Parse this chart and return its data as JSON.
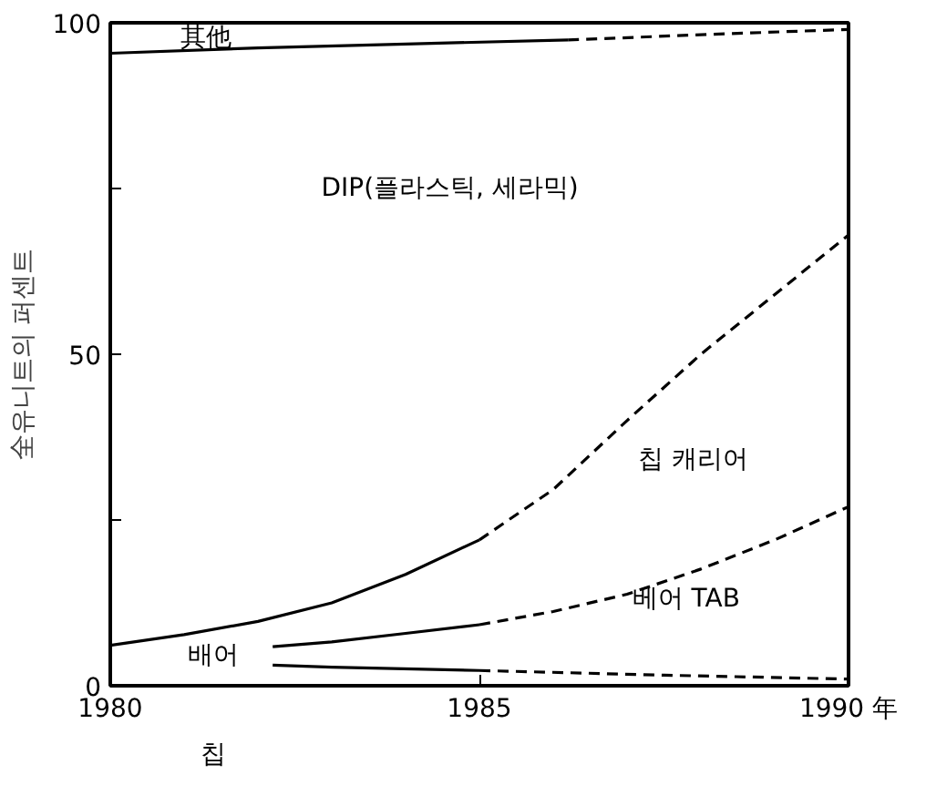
{
  "chart_data": {
    "type": "line",
    "ylabel": "全유니트의 퍼센트",
    "xlim": [
      1980,
      1990
    ],
    "ylim": [
      0,
      100
    ],
    "xticks": [
      1980,
      1985,
      {
        "value": 1990,
        "label": "1990 年"
      }
    ],
    "yticks": [
      0,
      {
        "value": 25,
        "label": null
      },
      50,
      {
        "value": 75,
        "label": null
      },
      100
    ],
    "grid": false,
    "marker": "none",
    "series": [
      {
        "color": "#000000",
        "line_style": "solid",
        "x": [
          1980,
          1982,
          1984,
          1986.2
        ],
        "values": [
          95.4,
          96.2,
          96.8,
          97.4
        ]
      },
      {
        "color": "#000000",
        "line_style": "dashed",
        "x": [
          1986.2,
          1988,
          1990
        ],
        "values": [
          97.4,
          98.2,
          99.0
        ]
      },
      {
        "color": "#000000",
        "line_style": "solid",
        "x": [
          1980,
          1981,
          1982,
          1983,
          1984,
          1985
        ],
        "values": [
          6.1,
          7.7,
          9.7,
          12.5,
          16.8,
          22
        ]
      },
      {
        "color": "#000000",
        "line_style": "dashed",
        "x": [
          1985,
          1986,
          1987,
          1988,
          1989,
          1990
        ],
        "values": [
          22,
          29.6,
          40,
          50,
          59,
          68
        ]
      },
      {
        "color": "#000000",
        "line_style": "solid",
        "x": [
          1982.2,
          1983,
          1984,
          1985
        ],
        "values": [
          5.9,
          6.6,
          7.9,
          9.2
        ]
      },
      {
        "color": "#000000",
        "line_style": "dashed",
        "x": [
          1985,
          1986,
          1987,
          1988,
          1989,
          1990
        ],
        "values": [
          9.2,
          11.2,
          13.8,
          17.6,
          22,
          27
        ]
      },
      {
        "color": "#000000",
        "line_style": "solid",
        "x": [
          1982.2,
          1983,
          1985
        ],
        "values": [
          3.1,
          2.8,
          2.3
        ]
      },
      {
        "color": "#000000",
        "line_style": "dashed",
        "x": [
          1985,
          1987.5,
          1990
        ],
        "values": [
          2.3,
          1.6,
          1.0
        ]
      }
    ],
    "annotations": [
      "其他",
      "DIP(플라스틱, 세라믹)",
      "칩 캐리어",
      "베어 TAB",
      "배어",
      "칩"
    ]
  }
}
